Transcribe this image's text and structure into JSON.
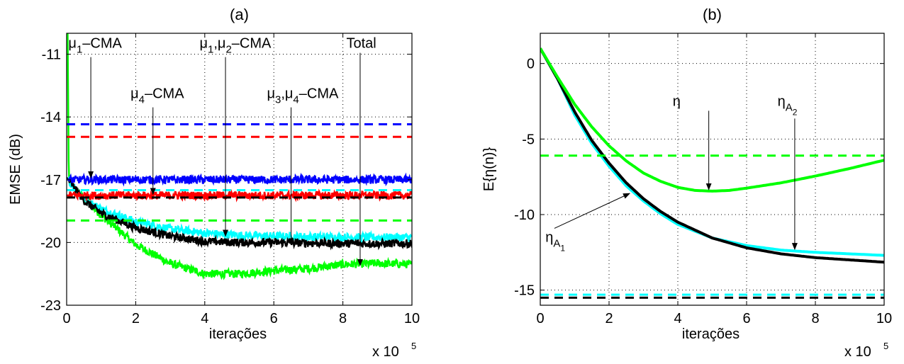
{
  "chart_data": [
    {
      "id": "a",
      "type": "line",
      "title": "(a)",
      "xlabel": "iterações",
      "ylabel": "EMSE (dB)",
      "x_multiplier": "x 10",
      "x_multiplier_exp": "5",
      "xlim": [
        0,
        10
      ],
      "ylim": [
        -23,
        -10
      ],
      "xticks": [
        0,
        2,
        4,
        6,
        8,
        10
      ],
      "yticks": [
        -23,
        -20,
        -17,
        -14,
        -11
      ],
      "grid": true,
      "series": [
        {
          "color": "#00ff00",
          "style": "solid",
          "noisy": true,
          "points": [
            [
              0,
              -10
            ],
            [
              0.03,
              -10
            ],
            [
              0.06,
              -16.8
            ],
            [
              0.2,
              -17.4
            ],
            [
              1,
              -18.7
            ],
            [
              2,
              -20.1
            ],
            [
              3,
              -21
            ],
            [
              4,
              -21.5
            ],
            [
              5,
              -21.5
            ],
            [
              6,
              -21.35
            ],
            [
              7,
              -21.25
            ],
            [
              8,
              -21.05
            ],
            [
              9,
              -21
            ],
            [
              10,
              -21.05
            ]
          ]
        },
        {
          "color": "#00ffff",
          "style": "solid",
          "noisy": true,
          "points": [
            [
              0,
              -16.9
            ],
            [
              0.5,
              -17.9
            ],
            [
              1,
              -18.4
            ],
            [
              2,
              -19
            ],
            [
              3,
              -19.35
            ],
            [
              4,
              -19.55
            ],
            [
              5,
              -19.65
            ],
            [
              6,
              -19.7
            ],
            [
              8,
              -19.75
            ],
            [
              10,
              -19.75
            ]
          ]
        },
        {
          "color": "#000000",
          "style": "solid",
          "noisy": true,
          "points": [
            [
              0,
              -16.9
            ],
            [
              0.5,
              -18
            ],
            [
              1,
              -18.6
            ],
            [
              2,
              -19.3
            ],
            [
              3,
              -19.7
            ],
            [
              4,
              -19.95
            ],
            [
              5,
              -20.0
            ],
            [
              6,
              -20.0
            ],
            [
              8,
              -20.05
            ],
            [
              10,
              -20.05
            ]
          ]
        },
        {
          "color": "#0000ff",
          "style": "solid",
          "noisy": true,
          "points": [
            [
              0,
              -17
            ],
            [
              10,
              -17
            ]
          ]
        },
        {
          "color": "#ff0000",
          "style": "solid",
          "noisy": true,
          "points": [
            [
              0,
              -17.75
            ],
            [
              10,
              -17.75
            ]
          ]
        },
        {
          "color": "#0000ff",
          "style": "dashed",
          "points": [
            [
              0,
              -14.35
            ],
            [
              10,
              -14.35
            ]
          ]
        },
        {
          "color": "#ff0000",
          "style": "dashed",
          "points": [
            [
              0,
              -14.95
            ],
            [
              10,
              -14.95
            ]
          ]
        },
        {
          "color": "#00ffff",
          "style": "dashed",
          "points": [
            [
              0,
              -17.5
            ],
            [
              10,
              -17.5
            ]
          ]
        },
        {
          "color": "#000000",
          "style": "dashed",
          "points": [
            [
              0,
              -17.85
            ],
            [
              10,
              -17.85
            ]
          ]
        },
        {
          "color": "#00ff00",
          "style": "dashed",
          "points": [
            [
              0,
              -18.95
            ],
            [
              10,
              -18.95
            ]
          ]
        }
      ],
      "annotations": [
        {
          "parts": [
            {
              "t": "μ"
            },
            {
              "t": "1",
              "sub": true
            },
            {
              "t": "–CMA"
            }
          ],
          "tx": 0.05,
          "ty": -10.7,
          "ax": 0.7,
          "ay": -16.9
        },
        {
          "parts": [
            {
              "t": "μ"
            },
            {
              "t": "4",
              "sub": true
            },
            {
              "t": "–CMA"
            }
          ],
          "tx": 1.85,
          "ty": -13.1,
          "ax": 2.5,
          "ay": -17.7
        },
        {
          "parts": [
            {
              "t": "μ"
            },
            {
              "t": "1",
              "sub": true
            },
            {
              "t": ","
            },
            {
              "t": "μ"
            },
            {
              "t": "2",
              "sub": true
            },
            {
              "t": "–CMA"
            }
          ],
          "tx": 3.85,
          "ty": -10.7,
          "ax": 4.6,
          "ay": -19.7
        },
        {
          "parts": [
            {
              "t": "μ"
            },
            {
              "t": "3",
              "sub": true
            },
            {
              "t": ","
            },
            {
              "t": "μ"
            },
            {
              "t": "4",
              "sub": true
            },
            {
              "t": "–CMA"
            }
          ],
          "tx": 5.8,
          "ty": -13.1,
          "ax": 6.5,
          "ay": -20.1
        },
        {
          "parts": [
            {
              "t": "Total"
            }
          ],
          "tx": 8.1,
          "ty": -10.7,
          "ax": 8.5,
          "ay": -21.1
        }
      ]
    },
    {
      "id": "b",
      "type": "line",
      "title": "(b)",
      "xlabel": "iterações",
      "ylabel": "E{η(n)}",
      "x_multiplier": "x 10",
      "x_multiplier_exp": "5",
      "xlim": [
        0,
        10
      ],
      "ylim": [
        -16,
        2
      ],
      "xticks": [
        0,
        2,
        4,
        6,
        8,
        10
      ],
      "yticks": [
        -15,
        -10,
        -5,
        0
      ],
      "grid": true,
      "series": [
        {
          "color": "#00ffff",
          "style": "solid",
          "points": [
            [
              0,
              1
            ],
            [
              0.5,
              -1
            ],
            [
              1,
              -3.4
            ],
            [
              1.5,
              -5.3
            ],
            [
              2,
              -6.8
            ],
            [
              2.5,
              -8.1
            ],
            [
              3,
              -9.1
            ],
            [
              3.5,
              -9.95
            ],
            [
              4,
              -10.65
            ],
            [
              5,
              -11.55
            ],
            [
              6,
              -12.05
            ],
            [
              7,
              -12.35
            ],
            [
              8,
              -12.5
            ],
            [
              9,
              -12.6
            ],
            [
              10,
              -12.7
            ]
          ]
        },
        {
          "color": "#000000",
          "style": "solid",
          "points": [
            [
              0,
              1
            ],
            [
              0.5,
              -1
            ],
            [
              1,
              -3.2
            ],
            [
              1.5,
              -5.1
            ],
            [
              2,
              -6.6
            ],
            [
              2.5,
              -7.9
            ],
            [
              3,
              -8.95
            ],
            [
              3.5,
              -9.8
            ],
            [
              4,
              -10.5
            ],
            [
              5,
              -11.55
            ],
            [
              6,
              -12.2
            ],
            [
              7,
              -12.6
            ],
            [
              8,
              -12.85
            ],
            [
              9,
              -13.0
            ],
            [
              10,
              -13.15
            ]
          ]
        },
        {
          "color": "#00ff00",
          "style": "solid",
          "points": [
            [
              0,
              1
            ],
            [
              0.5,
              -0.9
            ],
            [
              1,
              -2.7
            ],
            [
              1.5,
              -4.2
            ],
            [
              2,
              -5.45
            ],
            [
              2.5,
              -6.45
            ],
            [
              3,
              -7.25
            ],
            [
              3.5,
              -7.8
            ],
            [
              4,
              -8.2
            ],
            [
              4.5,
              -8.4
            ],
            [
              5,
              -8.45
            ],
            [
              5.5,
              -8.4
            ],
            [
              6,
              -8.25
            ],
            [
              7,
              -7.9
            ],
            [
              8,
              -7.45
            ],
            [
              9,
              -6.95
            ],
            [
              10,
              -6.4
            ]
          ]
        },
        {
          "color": "#00ff00",
          "style": "dashed",
          "points": [
            [
              0,
              -6.1
            ],
            [
              10,
              -6.1
            ]
          ]
        },
        {
          "color": "#00ffff",
          "style": "dashed",
          "points": [
            [
              0,
              -15.3
            ],
            [
              10,
              -15.3
            ]
          ]
        },
        {
          "color": "#000000",
          "style": "dashed",
          "points": [
            [
              0,
              -15.5
            ],
            [
              10,
              -15.5
            ]
          ]
        }
      ],
      "annotations": [
        {
          "parts": [
            {
              "t": "η"
            }
          ],
          "tx": 3.85,
          "ty": -2.8,
          "ax": 4.9,
          "ay": -8.35
        },
        {
          "parts": [
            {
              "t": "η"
            },
            {
              "t": "A",
              "sub": true
            },
            {
              "t": "2",
              "subsub": true
            }
          ],
          "tx": 6.9,
          "ty": -2.8,
          "ax": 7.4,
          "ay": -12.3
        },
        {
          "parts": [
            {
              "t": "η"
            },
            {
              "t": "A",
              "sub": true
            },
            {
              "t": "1",
              "subsub": true
            }
          ],
          "tx": 0.15,
          "ty": -11.8,
          "ax": 2.6,
          "ay": -8.6
        }
      ]
    }
  ]
}
